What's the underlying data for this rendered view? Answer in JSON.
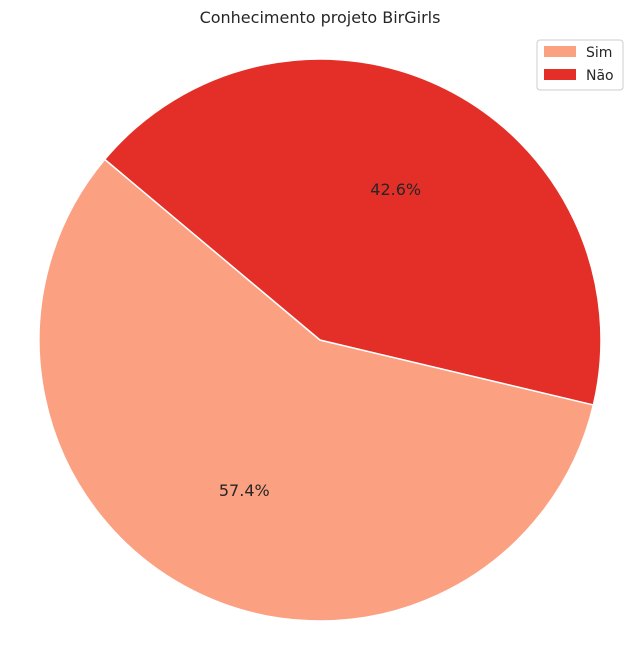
{
  "chart_data": {
    "type": "pie",
    "title": "Conhecimento projeto BirGirls",
    "slices": [
      {
        "label": "Sim",
        "value": 57.4,
        "pct_label": "57.4%",
        "color": "#fca082"
      },
      {
        "label": "Não",
        "value": 42.6,
        "pct_label": "42.6%",
        "color": "#e32f27"
      }
    ],
    "legend_position": "top-right",
    "start_angle_deg": 140,
    "direction": "counterclockwise"
  }
}
